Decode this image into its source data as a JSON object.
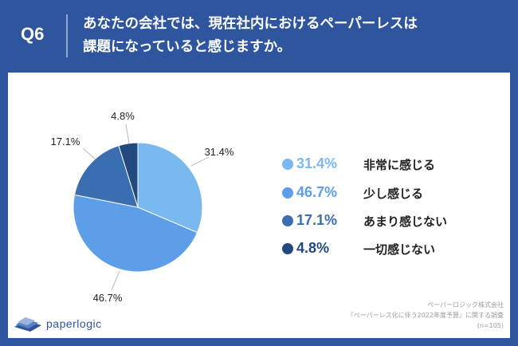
{
  "header": {
    "question_label": "Q6",
    "title_line1": "あなたの会社では、現在社内におけるペーパーレスは",
    "title_line2": "課題になっていると感じますか。"
  },
  "chart_data": {
    "type": "pie",
    "slices": [
      {
        "label": "非常に感じる",
        "value": 31.4,
        "display": "31.4%",
        "color": "#7ab8f0"
      },
      {
        "label": "少し感じる",
        "value": 46.7,
        "display": "46.7%",
        "color": "#5c9ee8"
      },
      {
        "label": "あまり感じない",
        "value": 17.1,
        "display": "17.1%",
        "color": "#3a6eb0"
      },
      {
        "label": "一切感じない",
        "value": 4.8,
        "display": "4.8%",
        "color": "#234a80"
      }
    ],
    "legend_position": "right"
  },
  "footer": {
    "source_line1": "ペーパーロジック株式会社",
    "source_line2": "『ペーパーレス化に伴う2022年度予算』に関する調査",
    "source_line3": "(n=105)",
    "logo_text": "paperlogic"
  }
}
